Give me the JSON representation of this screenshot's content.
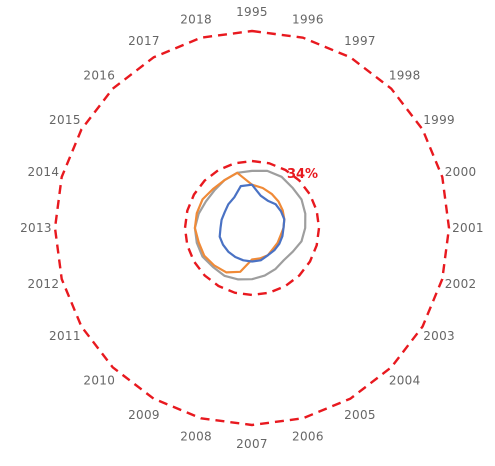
{
  "chart_data": {
    "type": "radar",
    "categories": [
      "1995",
      "1996",
      "1997",
      "1998",
      "1999",
      "2000",
      "2001",
      "2002",
      "2003",
      "2004",
      "2005",
      "2006",
      "2007",
      "2008",
      "2009",
      "2010",
      "2011",
      "2012",
      "2013",
      "2014",
      "2015",
      "2016",
      "2017",
      "2018"
    ],
    "rlim": [
      0,
      100
    ],
    "grid": false,
    "colors": {
      "reference": "#e8191f",
      "inner": "#e8191f",
      "label": "#e8191f",
      "ticks": "#666666"
    },
    "reference_rings": [
      {
        "value": 100
      },
      {
        "value": 34,
        "label": "34%",
        "label_category": "1997"
      }
    ],
    "series": [
      {
        "color": "#9e9e9e",
        "values": [
          29,
          30,
          30,
          29,
          29,
          28,
          27,
          26,
          24,
          23,
          24,
          25,
          26,
          27,
          28,
          28,
          29,
          29,
          29,
          28,
          27,
          27,
          28,
          29
        ]
      },
      {
        "color": "#f08a37",
        "values": [
          22,
          21,
          20,
          19,
          18,
          17,
          16,
          15,
          15,
          15,
          16,
          16,
          16,
          23,
          26,
          27,
          28,
          28,
          29,
          29,
          29,
          28,
          28,
          29
        ]
      },
      {
        "color": "#4a72c4",
        "values": [
          22,
          17,
          16,
          17,
          17,
          17,
          16,
          16,
          16,
          16,
          16,
          17,
          17,
          17,
          17,
          17,
          17,
          17,
          16,
          16,
          16,
          17,
          18,
          22
        ]
      }
    ]
  }
}
